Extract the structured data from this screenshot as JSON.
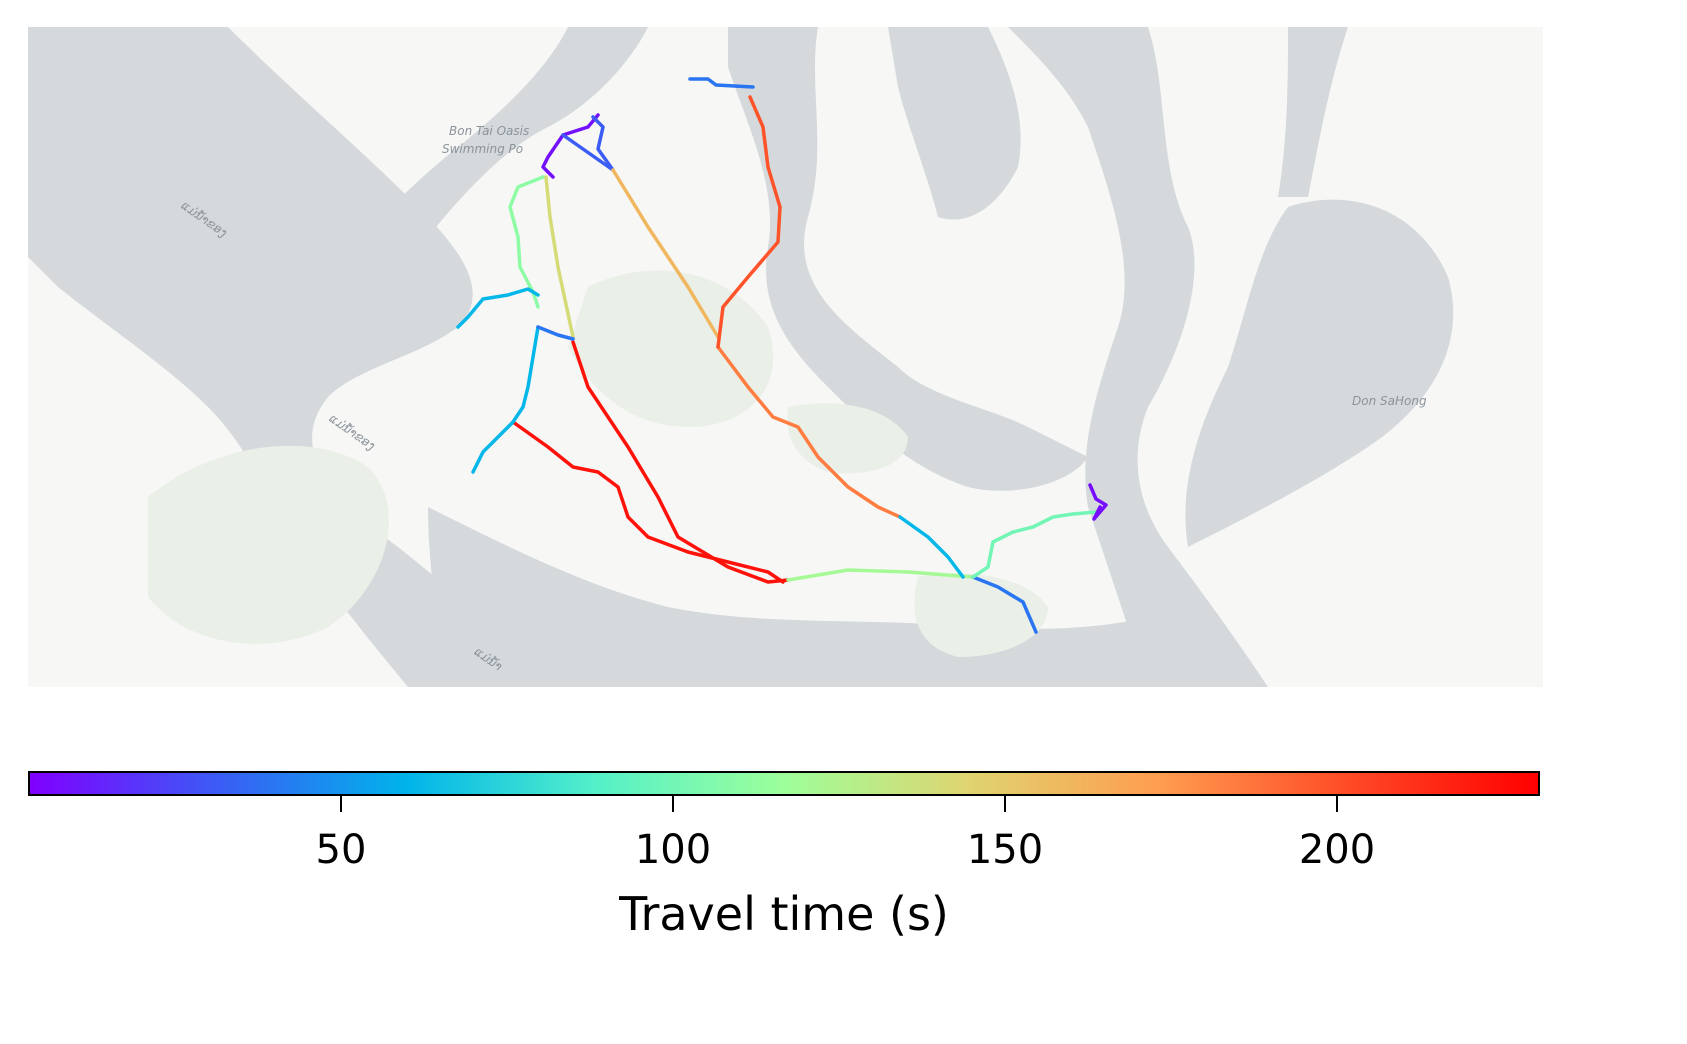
{
  "map": {
    "labels": {
      "poi_line1": "Bon Tai Oasis",
      "poi_line2": "Swimming Po",
      "island_east": "Don SaHong",
      "river_1": "ແມ່ນ້ຳຂອງ",
      "river_2": "ແມ່ນ້ຳຂອງ",
      "river_3": "ແມ່ນ້ຳ"
    },
    "colors": {
      "land": "#f7f7f6",
      "water": "#d5d9dc",
      "park": "#eaefe8"
    }
  },
  "colorbar": {
    "label": "Travel time (s)",
    "colormap": "rainbow",
    "range": [
      1,
      232
    ],
    "ticks": [
      {
        "value": 50,
        "label": "50"
      },
      {
        "value": 100,
        "label": "100"
      },
      {
        "value": 150,
        "label": "150"
      },
      {
        "value": 200,
        "label": "200"
      }
    ]
  },
  "routes": [
    {
      "name": "segment-a",
      "travel_time": 6
    },
    {
      "name": "segment-b",
      "travel_time": 30
    },
    {
      "name": "segment-c",
      "travel_time": 160
    },
    {
      "name": "segment-d",
      "travel_time": 185
    },
    {
      "name": "segment-e",
      "travel_time": 200
    },
    {
      "name": "segment-f",
      "travel_time": 110
    },
    {
      "name": "segment-g",
      "travel_time": 140
    },
    {
      "name": "segment-h",
      "travel_time": 225
    },
    {
      "name": "segment-i",
      "travel_time": 120
    },
    {
      "name": "segment-j",
      "travel_time": 60
    },
    {
      "name": "segment-k",
      "travel_time": 38
    },
    {
      "name": "segment-l",
      "travel_time": 100
    },
    {
      "name": "segment-m",
      "travel_time": 5
    }
  ]
}
